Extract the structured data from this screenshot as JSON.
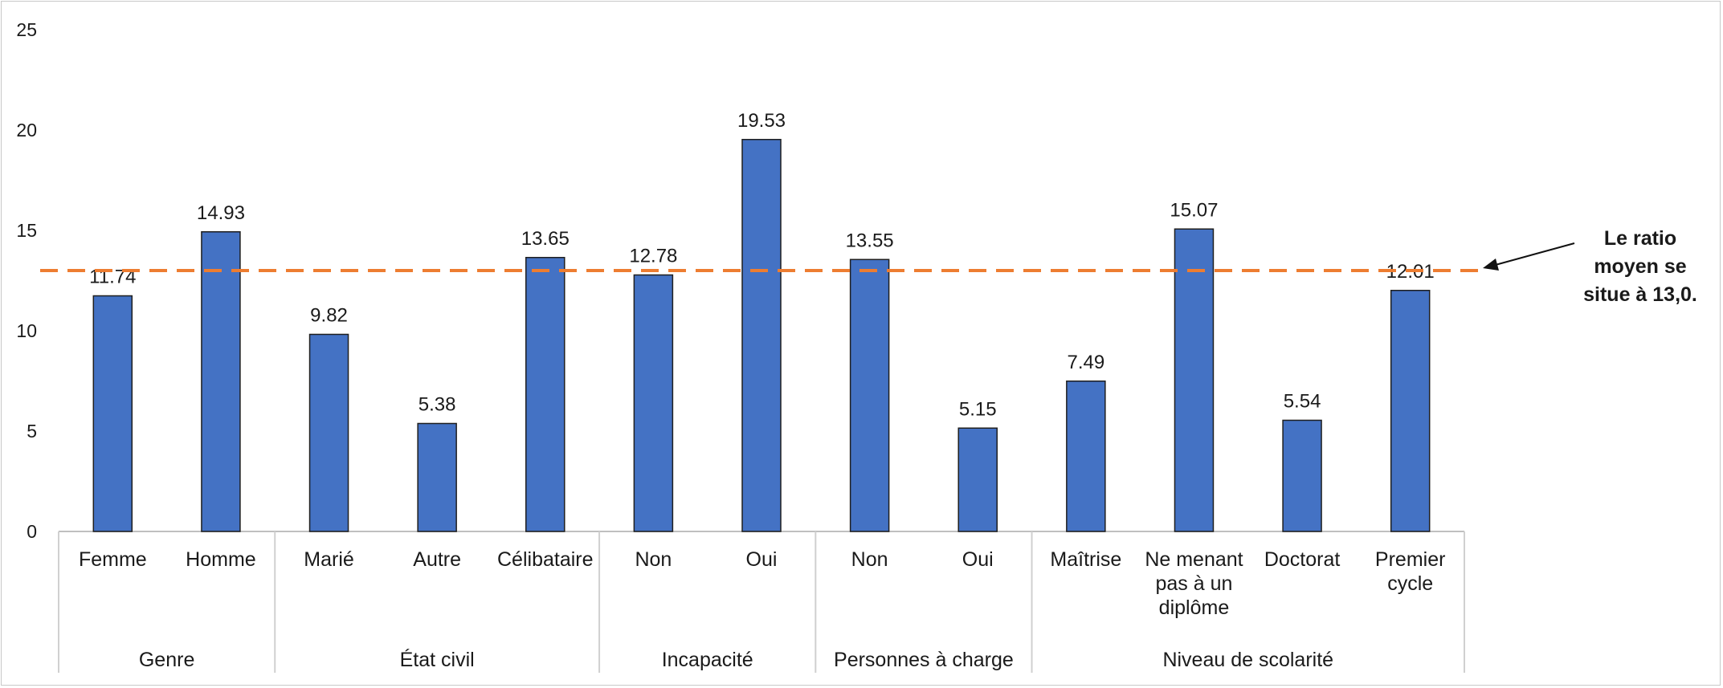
{
  "chart_data": {
    "type": "bar",
    "title": "",
    "xlabel": "",
    "ylabel": "",
    "ylim": [
      0,
      25
    ],
    "yticks": [
      0,
      5,
      10,
      15,
      20,
      25
    ],
    "grid": false,
    "bar_color": "#4472c4",
    "reference_line": {
      "value": 13.0,
      "color": "#ed7d31",
      "style": "dashed"
    },
    "annotation_lines": [
      "Le ratio",
      "moyen se",
      "situe à 13,0."
    ],
    "groups": [
      {
        "label": "Genre",
        "categories": [
          {
            "lines": [
              "Femme"
            ],
            "value": 11.74,
            "label": "11.74"
          },
          {
            "lines": [
              "Homme"
            ],
            "value": 14.93,
            "label": "14.93"
          }
        ]
      },
      {
        "label": "État civil",
        "categories": [
          {
            "lines": [
              "Marié"
            ],
            "value": 9.82,
            "label": "9.82"
          },
          {
            "lines": [
              "Autre"
            ],
            "value": 5.38,
            "label": "5.38"
          },
          {
            "lines": [
              "Célibataire"
            ],
            "value": 13.65,
            "label": "13.65"
          }
        ]
      },
      {
        "label": "Incapacité",
        "categories": [
          {
            "lines": [
              "Non"
            ],
            "value": 12.78,
            "label": "12.78"
          },
          {
            "lines": [
              "Oui"
            ],
            "value": 19.53,
            "label": "19.53"
          }
        ]
      },
      {
        "label": "Personnes à charge",
        "categories": [
          {
            "lines": [
              "Non"
            ],
            "value": 13.55,
            "label": "13.55"
          },
          {
            "lines": [
              "Oui"
            ],
            "value": 5.15,
            "label": "5.15"
          }
        ]
      },
      {
        "label": "Niveau de scolarité",
        "categories": [
          {
            "lines": [
              "Maîtrise"
            ],
            "value": 7.49,
            "label": "7.49"
          },
          {
            "lines": [
              "Ne menant",
              "pas à un",
              "diplôme"
            ],
            "value": 15.07,
            "label": "15.07"
          },
          {
            "lines": [
              "Doctorat"
            ],
            "value": 5.54,
            "label": "5.54"
          },
          {
            "lines": [
              "Premier",
              "cycle"
            ],
            "value": 12.01,
            "label": "12.01"
          }
        ]
      }
    ]
  }
}
